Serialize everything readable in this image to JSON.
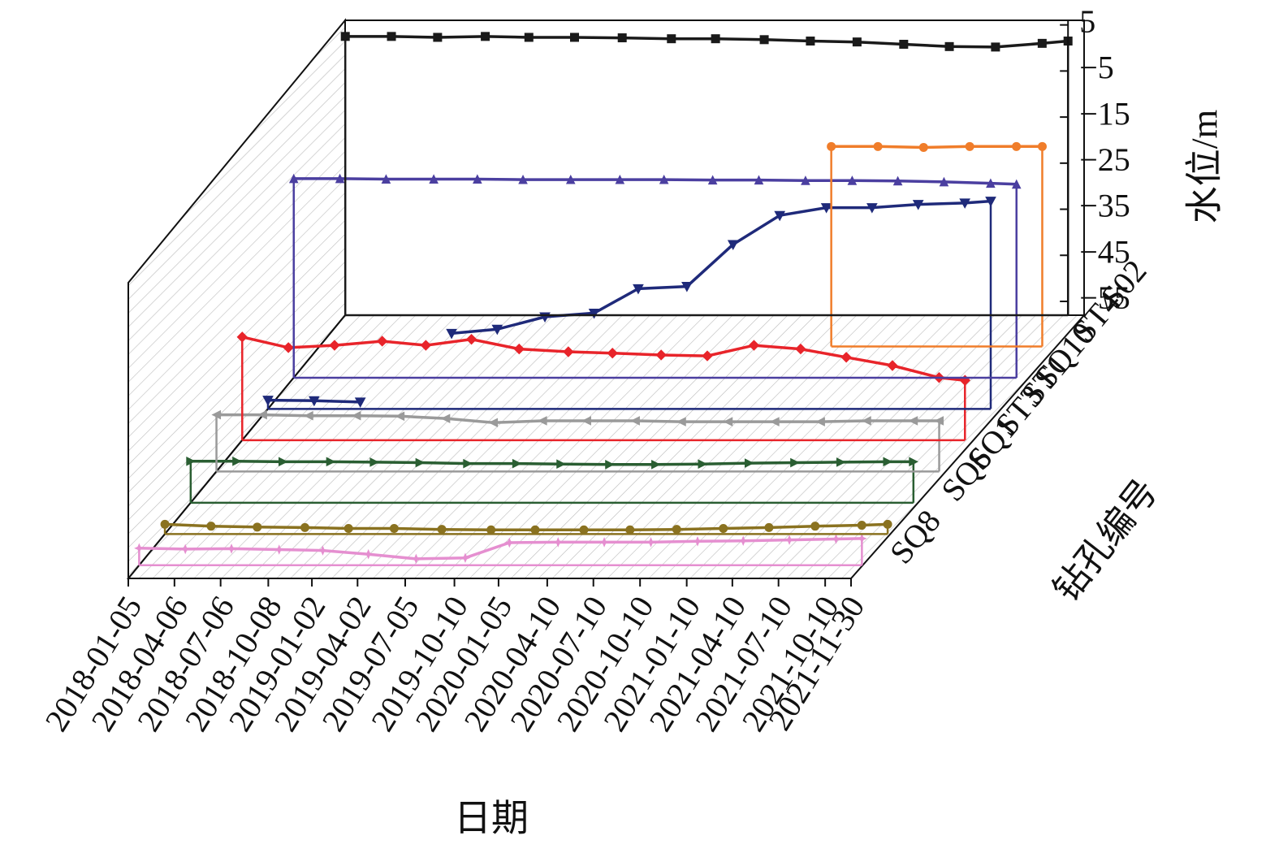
{
  "chart_data": {
    "type": "line3d",
    "x_label": "日期",
    "y_label": "水位/m",
    "depth_label": "钻孔编号",
    "x": [
      "2018-01-05",
      "2018-04-06",
      "2018-07-06",
      "2018-10-08",
      "2019-01-02",
      "2019-04-02",
      "2019-07-05",
      "2019-10-10",
      "2020-01-05",
      "2020-04-10",
      "2020-07-10",
      "2020-10-10",
      "2021-01-10",
      "2021-04-10",
      "2021-07-10",
      "2021-10-10",
      "2021-11-30"
    ],
    "ylim": [
      -58,
      6
    ],
    "yticks": [
      5,
      {
        "value": -5,
        "label": "−5"
      },
      {
        "value": -15,
        "label": "−15"
      },
      {
        "value": -25,
        "label": "−25"
      },
      {
        "value": -35,
        "label": "−35"
      },
      {
        "value": -45,
        "label": "−45"
      },
      {
        "value": -55,
        "label": "−55"
      }
    ],
    "series": [
      {
        "name": "SQ8",
        "color": "#e58fd0",
        "marker": "star",
        "values": [
          -54.3,
          -54.5,
          -54.4,
          -54.6,
          -54.8,
          -55.6,
          -56.6,
          -56.4,
          -53.1,
          -53.0,
          -53.0,
          -53.0,
          -52.8,
          -52.7,
          -52.5,
          -52.3,
          -52.2
        ]
      },
      {
        "name": null,
        "color": "#8a7220",
        "marker": "circle",
        "values": [
          -55.9,
          -56.3,
          -56.5,
          -56.6,
          -56.8,
          -56.8,
          -57.0,
          -57.1,
          -57.1,
          -57.1,
          -57.1,
          -57.0,
          -56.8,
          -56.6,
          -56.3,
          -56.1,
          -55.9
        ]
      },
      {
        "name": "SQ6",
        "color": "#2a5e32",
        "marker": "tri-right",
        "values": [
          -49.0,
          -49.0,
          -49.1,
          -49.1,
          -49.2,
          -49.3,
          -49.5,
          -49.5,
          -49.6,
          -49.7,
          -49.7,
          -49.6,
          -49.4,
          -49.3,
          -49.2,
          -49.1,
          -49.1
        ]
      },
      {
        "name": "SQ1",
        "color": "#9a9a9a",
        "marker": "tri-left",
        "values": [
          -45.7,
          -45.7,
          -45.9,
          -45.9,
          -46.0,
          -46.5,
          -47.4,
          -47.0,
          -47.0,
          -47.0,
          -47.2,
          -47.2,
          -47.2,
          -47.2,
          -47.0,
          -47.0,
          -47.0
        ]
      },
      {
        "name": "ST3",
        "color": "#e8242a",
        "marker": "diamond",
        "values": [
          -35.6,
          -37.9,
          -37.4,
          -36.5,
          -37.4,
          -36.1,
          -38.2,
          -38.8,
          -39.1,
          -39.5,
          -39.7,
          -37.4,
          -38.2,
          -40.0,
          -41.8,
          -44.4,
          -45.0
        ]
      },
      {
        "name": "ST1",
        "color": "#1f2a7a",
        "marker": "tri-down",
        "values": [
          -56.1,
          -56.2,
          -56.5,
          null,
          -41.6,
          -40.7,
          -38.0,
          -37.2,
          -31.9,
          -31.4,
          -22.3,
          -16.0,
          -14.3,
          -14.3,
          -13.6,
          -13.3,
          -12.9
        ]
      },
      {
        "name": "SQ10",
        "color": "#4b3fa0",
        "marker": "tri-up",
        "values": [
          -14.8,
          -14.8,
          -14.9,
          -14.9,
          -14.9,
          -15.0,
          -15.0,
          -15.0,
          -15.0,
          -15.1,
          -15.1,
          -15.2,
          -15.2,
          -15.3,
          -15.5,
          -15.8,
          -16.0
        ]
      },
      {
        "name": "ST4",
        "color": "#f07d2a",
        "marker": "circle",
        "values": [
          null,
          null,
          null,
          null,
          null,
          null,
          null,
          null,
          null,
          null,
          null,
          -14.6,
          -14.6,
          -14.8,
          -14.6,
          -14.6,
          -14.6
        ]
      },
      {
        "name": "S02",
        "color": "#1a1a1a",
        "marker": "square",
        "values": [
          2.5,
          2.5,
          2.3,
          2.5,
          2.3,
          2.3,
          2.2,
          2.0,
          2.0,
          1.8,
          1.5,
          1.3,
          0.8,
          0.3,
          0.2,
          1.0,
          1.5
        ]
      }
    ]
  }
}
